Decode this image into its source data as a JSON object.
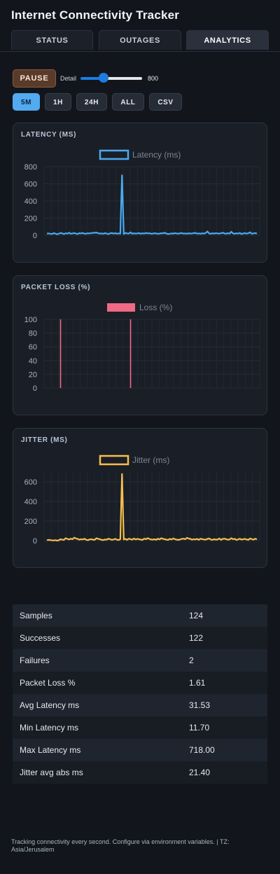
{
  "app": {
    "title": "Internet Connectivity Tracker"
  },
  "tabs": [
    {
      "label": "STATUS",
      "active": false
    },
    {
      "label": "OUTAGES",
      "active": false
    },
    {
      "label": "ANALYTICS",
      "active": true
    }
  ],
  "controls": {
    "pause_label": "PAUSE",
    "detail_label": "Detail",
    "detail_value": "800",
    "detail_fraction": 0.38,
    "ranges": [
      {
        "label": "5M",
        "active": true
      },
      {
        "label": "1H",
        "active": false
      },
      {
        "label": "24H",
        "active": false
      },
      {
        "label": "ALL",
        "active": false
      },
      {
        "label": "CSV",
        "active": false
      }
    ]
  },
  "colors": {
    "latency": "#4aaaf0",
    "loss": "#f06a85",
    "jitter": "#f6be4f",
    "accent": "#52aaf0"
  },
  "chart_data": [
    {
      "type": "line",
      "title": "LATENCY (MS)",
      "legend": "top-center",
      "ylim": [
        0,
        800
      ],
      "yticks": [
        0,
        200,
        400,
        600,
        800
      ],
      "grid": true,
      "series": [
        {
          "name": "Latency (ms)",
          "color": "#4aaaf0",
          "values": [
            20,
            22,
            18,
            15,
            25,
            20,
            12,
            18,
            28,
            22,
            15,
            24,
            20,
            30,
            18,
            22,
            26,
            20,
            15,
            25,
            22,
            28,
            18,
            20,
            24,
            22,
            26,
            28,
            30,
            32,
            25,
            20,
            22,
            18,
            25,
            20,
            15,
            22,
            28,
            20,
            25,
            18,
            22,
            20,
            700,
            15,
            28,
            22,
            20,
            35,
            18,
            24,
            20,
            22,
            26,
            18,
            24,
            20,
            28,
            22,
            25,
            18,
            20,
            24,
            22,
            18,
            20,
            25,
            22,
            30,
            20,
            15,
            18,
            22,
            20,
            25,
            22,
            18,
            24,
            26,
            20,
            22,
            18,
            24,
            20,
            22,
            25,
            28,
            20,
            22,
            18,
            24,
            20,
            28,
            45,
            22,
            18,
            24,
            20,
            25,
            22,
            20,
            24,
            30,
            22,
            18,
            25,
            20,
            42,
            22,
            18,
            24,
            20,
            28,
            15,
            22,
            25,
            20,
            24,
            35,
            18,
            22,
            26,
            20
          ]
        }
      ]
    },
    {
      "type": "line",
      "title": "PACKET LOSS (%)",
      "legend": "top-center",
      "ylim": [
        0,
        100
      ],
      "yticks": [
        0,
        20,
        40,
        60,
        80,
        100
      ],
      "grid": true,
      "series": [
        {
          "name": "Loss (%)",
          "color": "#f06a85",
          "spikes_at_sample": [
            8,
            49
          ],
          "values": [
            0,
            0,
            0,
            0,
            0,
            0,
            0,
            0,
            100,
            0,
            0,
            0,
            0,
            0,
            0,
            0,
            0,
            0,
            0,
            0,
            0,
            0,
            0,
            0,
            0,
            0,
            0,
            0,
            0,
            0,
            0,
            0,
            0,
            0,
            0,
            0,
            0,
            0,
            0,
            0,
            0,
            0,
            0,
            0,
            0,
            0,
            0,
            0,
            0,
            100,
            0,
            0,
            0,
            0,
            0,
            0,
            0,
            0,
            0,
            0,
            0,
            0,
            0,
            0,
            0,
            0,
            0,
            0,
            0,
            0,
            0,
            0,
            0,
            0,
            0,
            0,
            0,
            0,
            0,
            0,
            0,
            0,
            0,
            0,
            0,
            0,
            0,
            0,
            0,
            0,
            0,
            0,
            0,
            0,
            0,
            0,
            0,
            0,
            0,
            0,
            0,
            0,
            0,
            0,
            0,
            0,
            0,
            0,
            0,
            0,
            0,
            0,
            0,
            0,
            0,
            0,
            0,
            0,
            0,
            0,
            0,
            0,
            0,
            0
          ]
        }
      ]
    },
    {
      "type": "line",
      "title": "JITTER (MS)",
      "legend": "top-center",
      "ylim": [
        0,
        700
      ],
      "yticks": [
        0,
        200,
        400,
        600
      ],
      "grid": true,
      "series": [
        {
          "name": "Jitter (ms)",
          "color": "#f6be4f",
          "values": [
            5,
            8,
            6,
            3,
            2,
            5,
            0,
            4,
            15,
            10,
            8,
            25,
            18,
            12,
            20,
            15,
            30,
            22,
            18,
            10,
            15,
            12,
            20,
            8,
            5,
            12,
            15,
            10,
            8,
            25,
            18,
            15,
            8,
            6,
            12,
            10,
            20,
            15,
            8,
            12,
            18,
            10,
            6,
            15,
            680,
            12,
            18,
            8,
            20,
            15,
            10,
            22,
            12,
            18,
            15,
            10,
            8,
            20,
            15,
            25,
            18,
            12,
            10,
            15,
            8,
            20,
            12,
            25,
            18,
            15,
            10,
            8,
            18,
            12,
            22,
            15,
            10,
            8,
            12,
            18,
            20,
            15,
            28,
            22,
            18,
            10,
            15,
            12,
            18,
            8,
            20,
            15,
            12,
            10,
            18,
            22,
            12,
            8,
            15,
            10,
            12,
            22,
            8,
            18,
            20,
            15,
            10,
            12,
            25,
            15,
            18,
            8,
            12,
            20,
            10,
            15,
            18,
            12,
            8,
            22,
            15,
            10,
            20,
            12
          ]
        }
      ]
    }
  ],
  "stats": [
    {
      "label": "Samples",
      "value": "124"
    },
    {
      "label": "Successes",
      "value": "122"
    },
    {
      "label": "Failures",
      "value": "2"
    },
    {
      "label": "Packet Loss %",
      "value": "1.61"
    },
    {
      "label": "Avg Latency ms",
      "value": "31.53"
    },
    {
      "label": "Min Latency ms",
      "value": "11.70"
    },
    {
      "label": "Max Latency ms",
      "value": "718.00"
    },
    {
      "label": "Jitter avg abs ms",
      "value": "21.40"
    }
  ],
  "footer": {
    "text": "Tracking connectivity every second. Configure via environment variables. | TZ: Asia/Jerusalem"
  }
}
